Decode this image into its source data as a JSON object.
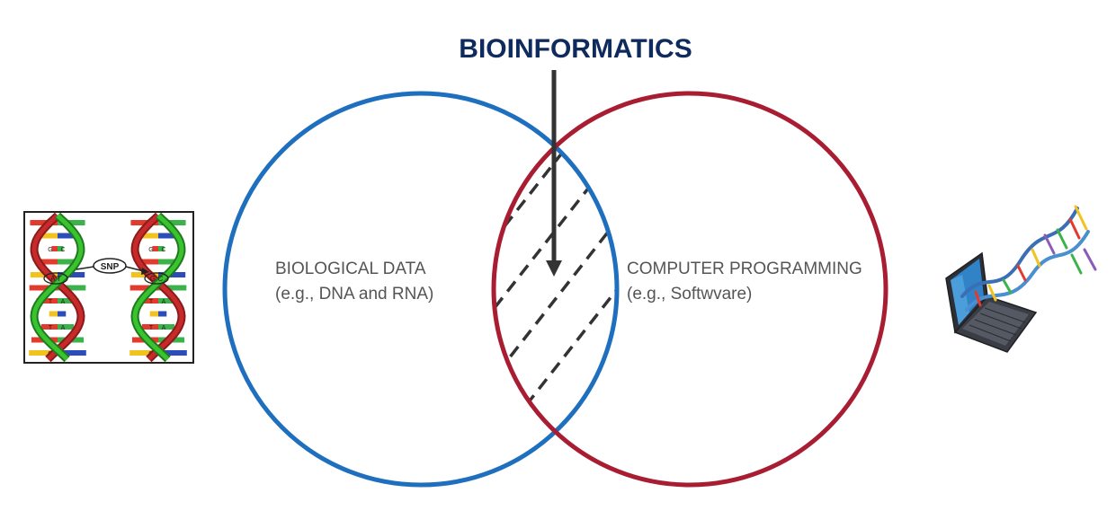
{
  "title": "BIOINFORMATICS",
  "left_set": {
    "line1": "BIOLOGICAL DATA",
    "line2": "(e.g., DNA and RNA)"
  },
  "right_set": {
    "line1": "COMPUTER PROGRAMMING",
    "line2": "(e.g., Softwvare)"
  },
  "dna_figure": {
    "marker_label": "SNP",
    "left_pair_letters": [
      "T",
      "A",
      "G",
      "C",
      "A",
      "T",
      "T",
      "A"
    ],
    "right_pair_letters": [
      "T",
      "A",
      "G",
      "C",
      "A",
      "T",
      "T",
      "A"
    ],
    "snp_left": "A T",
    "snp_right": "G C"
  },
  "colors": {
    "title": "#0f2a5c",
    "left_circle": "#1f6fbf",
    "right_circle": "#a81d32",
    "arrow": "#333333",
    "hatch": "#333333",
    "text": "#555555"
  },
  "icons": {
    "left_image": "dna-snp-illustration",
    "right_image": "laptop-dna-icon"
  }
}
